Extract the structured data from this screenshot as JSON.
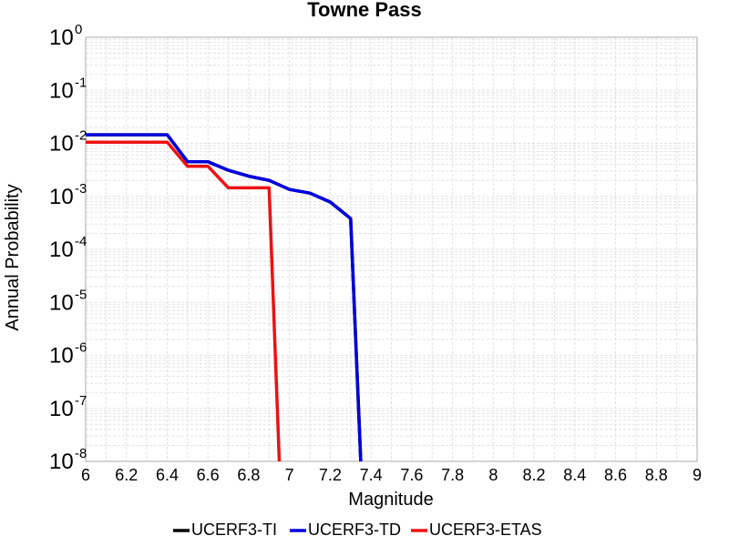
{
  "chart_data": {
    "type": "line",
    "title": "Towne Pass",
    "xlabel": "Magnitude",
    "ylabel": "Annual Probability",
    "xlim": [
      6,
      9
    ],
    "ylim": [
      1e-08,
      1
    ],
    "yscale": "log",
    "grid": true,
    "legend_position": "bottom",
    "x_ticks": [
      "6",
      "6.2",
      "6.4",
      "6.6",
      "6.8",
      "7",
      "7.2",
      "7.4",
      "7.6",
      "7.8",
      "8",
      "8.2",
      "8.4",
      "8.6",
      "8.8",
      "9"
    ],
    "y_ticks": [
      {
        "value": 1,
        "base": "10",
        "exp": "0"
      },
      {
        "value": 0.1,
        "base": "10",
        "exp": "-1"
      },
      {
        "value": 0.01,
        "base": "10",
        "exp": "-2"
      },
      {
        "value": 0.001,
        "base": "10",
        "exp": "-3"
      },
      {
        "value": 0.0001,
        "base": "10",
        "exp": "-4"
      },
      {
        "value": 1e-05,
        "base": "10",
        "exp": "-5"
      },
      {
        "value": 1e-06,
        "base": "10",
        "exp": "-6"
      },
      {
        "value": 1e-07,
        "base": "10",
        "exp": "-7"
      },
      {
        "value": 1e-08,
        "base": "10",
        "exp": "-8"
      }
    ],
    "series": [
      {
        "name": "UCERF3-TI",
        "color": "#000000",
        "x": [
          6.0,
          6.1,
          6.2,
          6.3,
          6.4,
          6.5,
          6.6,
          6.7,
          6.8,
          6.9,
          7.0,
          7.1,
          7.2,
          7.3,
          7.35
        ],
        "y": [
          0.0145,
          0.0145,
          0.0145,
          0.0145,
          0.0145,
          0.0045,
          0.0045,
          0.0031,
          0.0024,
          0.002,
          0.00135,
          0.00115,
          0.00078,
          0.00038,
          1e-08
        ]
      },
      {
        "name": "UCERF3-TD",
        "color": "#0000dd",
        "x": [
          6.0,
          6.1,
          6.2,
          6.3,
          6.4,
          6.5,
          6.6,
          6.7,
          6.8,
          6.9,
          7.0,
          7.1,
          7.2,
          7.3,
          7.35
        ],
        "y": [
          0.0145,
          0.0145,
          0.0145,
          0.0145,
          0.0145,
          0.0045,
          0.0045,
          0.0031,
          0.0024,
          0.002,
          0.00135,
          0.00115,
          0.00078,
          0.00038,
          1e-08
        ]
      },
      {
        "name": "UCERF3-ETAS",
        "color": "#ee1111",
        "x": [
          6.0,
          6.1,
          6.2,
          6.3,
          6.4,
          6.5,
          6.6,
          6.7,
          6.8,
          6.9,
          6.95
        ],
        "y": [
          0.0105,
          0.0105,
          0.0105,
          0.0105,
          0.0105,
          0.0037,
          0.0037,
          0.00145,
          0.00145,
          0.00145,
          1e-08
        ]
      }
    ]
  }
}
